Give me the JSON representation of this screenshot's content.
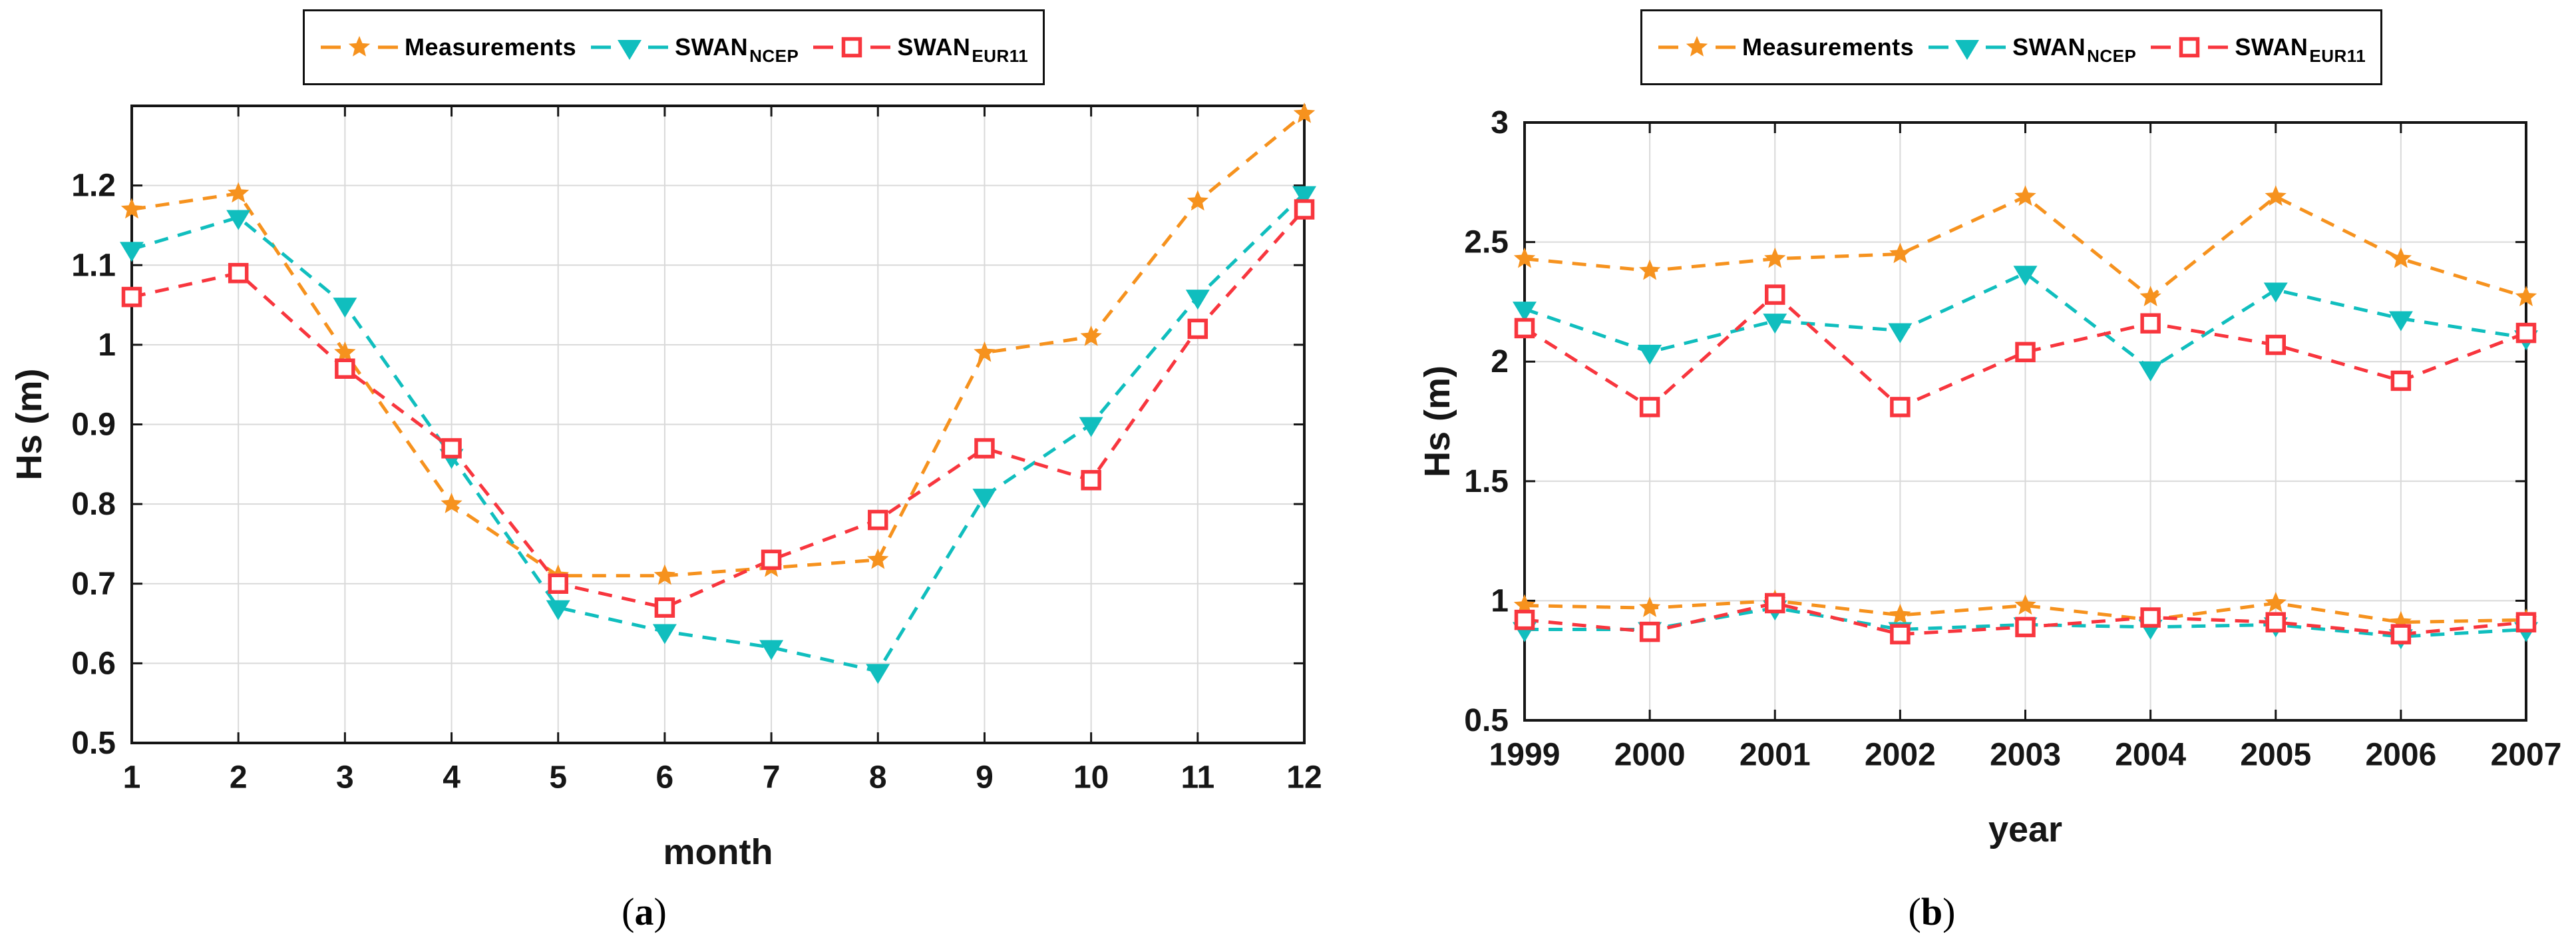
{
  "legend": {
    "items": [
      {
        "label": "Measurements",
        "sub": "",
        "color": "#F6921E",
        "marker": "star"
      },
      {
        "label": "SWAN",
        "sub": "NCEP",
        "color": "#10BEBE",
        "marker": "triangle-down"
      },
      {
        "label": "SWAN",
        "sub": "EUR11",
        "color": "#F8363E",
        "marker": "square-open"
      }
    ]
  },
  "captions": [
    {
      "pre": "(",
      "letter": "a",
      "post": ")"
    },
    {
      "pre": "(",
      "letter": "b",
      "post": ")"
    }
  ],
  "colors": {
    "measurements": "#F6921E",
    "swan_ncep": "#10BEBE",
    "swan_eur11": "#F8363E",
    "grid": "#D9D9D9",
    "axis": "#151515"
  },
  "chart_data": [
    {
      "type": "line",
      "title": "",
      "xlabel": "month",
      "ylabel": "Hs (m)",
      "x": [
        1,
        2,
        3,
        4,
        5,
        6,
        7,
        8,
        9,
        10,
        11,
        12
      ],
      "x_tick_labels": [
        "1",
        "2",
        "3",
        "4",
        "5",
        "6",
        "7",
        "8",
        "9",
        "10",
        "11",
        "12"
      ],
      "xlim": [
        1,
        12
      ],
      "ylim": [
        0.5,
        1.3
      ],
      "y_ticks": [
        0.5,
        0.6,
        0.7,
        0.8,
        0.9,
        1.0,
        1.1,
        1.2
      ],
      "y_tick_labels": [
        "0.5",
        "0.6",
        "0.7",
        "0.8",
        "0.9",
        "1",
        "1.1",
        "1.2"
      ],
      "grid": true,
      "legend_position": "top-outside",
      "line_style": "dashed",
      "series": [
        {
          "name": "Measurements",
          "marker": "star",
          "color": "#F6921E",
          "values": [
            1.17,
            1.19,
            0.99,
            0.8,
            0.71,
            0.71,
            0.72,
            0.73,
            0.99,
            1.01,
            1.18,
            1.29
          ]
        },
        {
          "name": "SWAN_NCEP",
          "marker": "triangle-down",
          "color": "#10BEBE",
          "values": [
            1.12,
            1.16,
            1.05,
            0.86,
            0.67,
            0.64,
            0.62,
            0.59,
            0.81,
            0.9,
            1.06,
            1.19
          ]
        },
        {
          "name": "SWAN_EUR11",
          "marker": "square-open",
          "color": "#F8363E",
          "values": [
            1.06,
            1.09,
            0.97,
            0.87,
            0.7,
            0.67,
            0.73,
            0.78,
            0.87,
            0.83,
            1.02,
            1.17
          ]
        }
      ]
    },
    {
      "type": "line",
      "title": "",
      "xlabel": "year",
      "ylabel": "Hs (m)",
      "x": [
        1999,
        2000,
        2001,
        2002,
        2003,
        2004,
        2005,
        2006,
        2007
      ],
      "x_tick_labels": [
        "1999",
        "2000",
        "2001",
        "2002",
        "2003",
        "2004",
        "2005",
        "2006",
        "2007"
      ],
      "xlim": [
        1999,
        2007
      ],
      "ylim": [
        0.5,
        3.0
      ],
      "y_ticks": [
        0.5,
        1.0,
        1.5,
        2.0,
        2.5,
        3.0
      ],
      "y_tick_labels": [
        "0.5",
        "1",
        "1.5",
        "2",
        "2.5",
        "3"
      ],
      "grid": true,
      "legend_position": "top-outside",
      "line_style": "dashed",
      "series": [
        {
          "name": "Measurements (upper group)",
          "marker": "star",
          "color": "#F6921E",
          "values": [
            2.43,
            2.38,
            2.43,
            2.45,
            2.69,
            2.27,
            2.69,
            2.43,
            2.27
          ]
        },
        {
          "name": "SWAN_NCEP (upper group)",
          "marker": "triangle-down",
          "color": "#10BEBE",
          "values": [
            2.22,
            2.04,
            2.17,
            2.13,
            2.37,
            1.97,
            2.3,
            2.18,
            2.1
          ]
        },
        {
          "name": "SWAN_EUR11 (upper group)",
          "marker": "square-open",
          "color": "#F8363E",
          "values": [
            2.14,
            1.81,
            2.28,
            1.81,
            2.04,
            2.16,
            2.07,
            1.92,
            2.12
          ]
        },
        {
          "name": "Measurements (lower group)",
          "marker": "star",
          "color": "#F6921E",
          "values": [
            0.98,
            0.97,
            1.0,
            0.94,
            0.98,
            0.92,
            0.99,
            0.91,
            0.92
          ]
        },
        {
          "name": "SWAN_NCEP (lower group)",
          "marker": "triangle-down",
          "color": "#10BEBE",
          "values": [
            0.88,
            0.88,
            0.97,
            0.88,
            0.9,
            0.89,
            0.9,
            0.85,
            0.88
          ]
        },
        {
          "name": "SWAN_EUR11 (lower group)",
          "marker": "square-open",
          "color": "#F8363E",
          "values": [
            0.92,
            0.87,
            0.99,
            0.86,
            0.89,
            0.93,
            0.91,
            0.86,
            0.91
          ]
        }
      ]
    }
  ]
}
